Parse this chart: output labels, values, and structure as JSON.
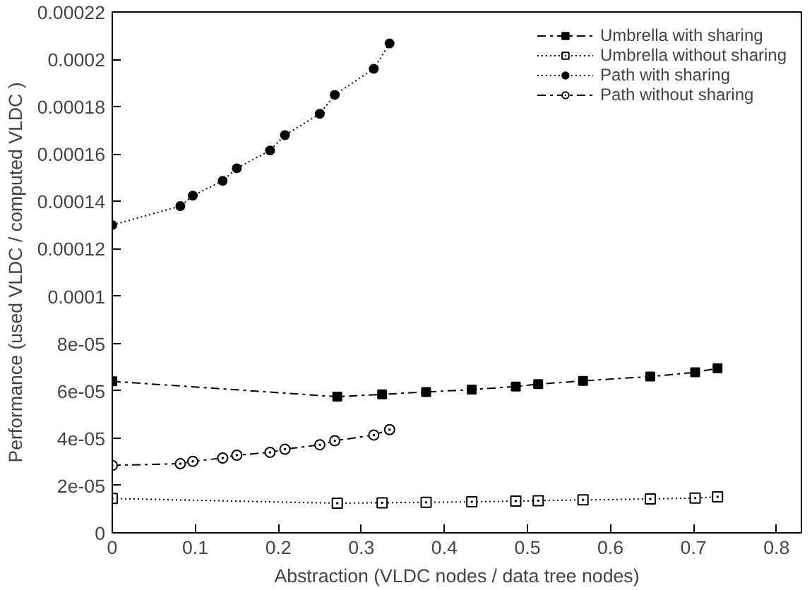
{
  "chart_data": {
    "type": "line",
    "xlabel": "Abstraction (VLDC nodes / data tree nodes)",
    "ylabel": "Performance (used VLDC / computed VLDC )",
    "xlim": [
      0,
      0.83
    ],
    "ylim": [
      0,
      0.00022
    ],
    "xticks": [
      0,
      0.1,
      0.2,
      0.3,
      0.4,
      0.5,
      0.6,
      0.7,
      0.8
    ],
    "yticks": [
      0,
      {
        "value": 2e-05,
        "label": "2e-05"
      },
      {
        "value": 4e-05,
        "label": "4e-05"
      },
      {
        "value": 6e-05,
        "label": "6e-05"
      },
      {
        "value": 8e-05,
        "label": "8e-05"
      },
      0.0001,
      0.00012,
      0.00014,
      0.00016,
      0.00018,
      0.0002,
      0.00022
    ],
    "grid": false,
    "legend": "top right",
    "series": [
      {
        "name": "Umbrella with sharing",
        "color": "#000000",
        "marker": "square",
        "line_style": "dashed",
        "x": [
          0,
          0.271,
          0.325,
          0.378,
          0.433,
          0.486,
          0.513,
          0.567,
          0.648,
          0.702,
          0.729
        ],
        "values": [
          6.4e-05,
          5.75e-05,
          5.85e-05,
          5.95e-05,
          6.05e-05,
          6.18e-05,
          6.28e-05,
          6.42e-05,
          6.6e-05,
          6.78e-05,
          6.95e-05
        ]
      },
      {
        "name": "Umbrella without sharing",
        "color": "#000000",
        "marker": "square_dot",
        "line_style": "dotted",
        "x": [
          0,
          0.271,
          0.325,
          0.378,
          0.433,
          0.486,
          0.513,
          0.567,
          0.648,
          0.702,
          0.729
        ],
        "values": [
          1.45e-05,
          1.25e-05,
          1.27e-05,
          1.29e-05,
          1.31e-05,
          1.34e-05,
          1.36e-05,
          1.39e-05,
          1.43e-05,
          1.47e-05,
          1.52e-05
        ]
      },
      {
        "name": "Path with sharing",
        "color": "#000000",
        "marker": "circle",
        "line_style": "dotted",
        "x": [
          0,
          0.082,
          0.097,
          0.133,
          0.15,
          0.19,
          0.208,
          0.25,
          0.268,
          0.315,
          0.334
        ],
        "values": [
          0.00013,
          0.000138,
          0.0001424,
          0.0001487,
          0.000154,
          0.0001615,
          0.000168,
          0.000177,
          0.000185,
          0.000196,
          0.0002067
        ]
      },
      {
        "name": "Path without sharing",
        "color": "#000000",
        "marker": "circle_dot",
        "line_style": "dashed",
        "x": [
          0,
          0.082,
          0.097,
          0.133,
          0.15,
          0.19,
          0.208,
          0.25,
          0.268,
          0.315,
          0.334
        ],
        "values": [
          2.85e-05,
          2.92e-05,
          3.02e-05,
          3.16e-05,
          3.28e-05,
          3.4e-05,
          3.53e-05,
          3.72e-05,
          3.89e-05,
          4.13e-05,
          4.36e-05
        ]
      }
    ]
  }
}
